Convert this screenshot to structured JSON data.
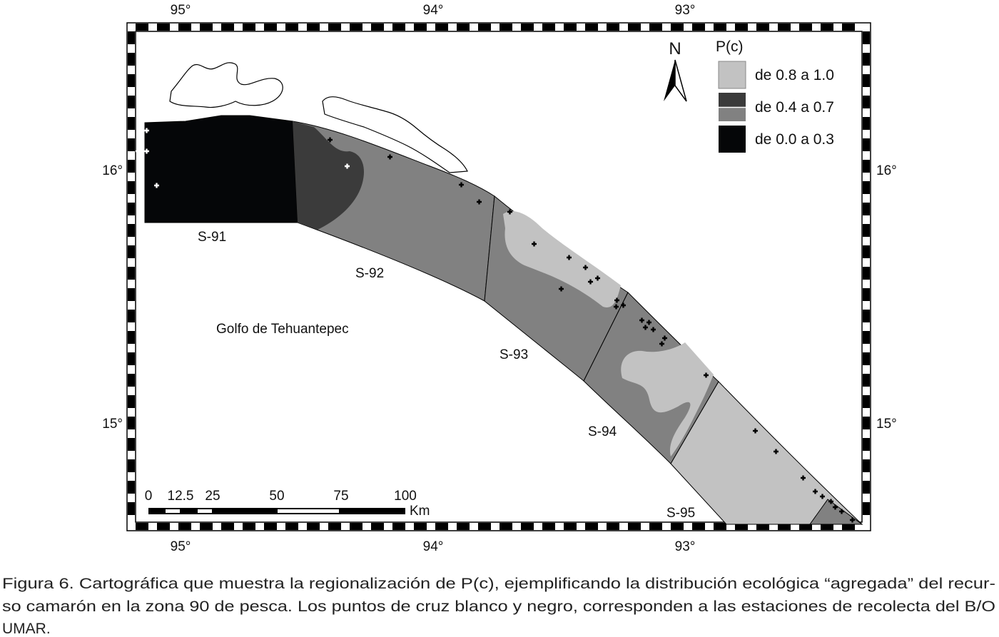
{
  "map": {
    "longitude_labels_top": [
      "95°",
      "94°",
      "93°"
    ],
    "longitude_labels_bottom": [
      "95°",
      "94°",
      "93°"
    ],
    "latitude_labels_left": [
      "16°",
      "15°"
    ],
    "latitude_labels_right": [
      "16°",
      "15°"
    ],
    "north": "N",
    "legend": {
      "title": "P(c)",
      "items": [
        "de 0.8 a 1.0",
        "de 0.4 a 0.7",
        "de 0.0 a 0.3"
      ]
    },
    "zones": [
      "S-91",
      "S-92",
      "S-93",
      "S-94",
      "S-95"
    ],
    "place": "Golfo de Tehuantepec",
    "scale": {
      "labels": [
        "0",
        "12.5",
        "25",
        "50",
        "75",
        "100"
      ],
      "unit": "Km"
    }
  },
  "caption": {
    "lines": [
      "Figura 6. Cartográfica que muestra la regionalización de P(c), ejemplificando la distribución ecológica “agregada” del recur-",
      "so camarón en la zona 90 de pesca. Los puntos de cruz blanco y negro, corresponden a las estaciones de recolecta del B/O",
      "UMAR."
    ]
  }
}
